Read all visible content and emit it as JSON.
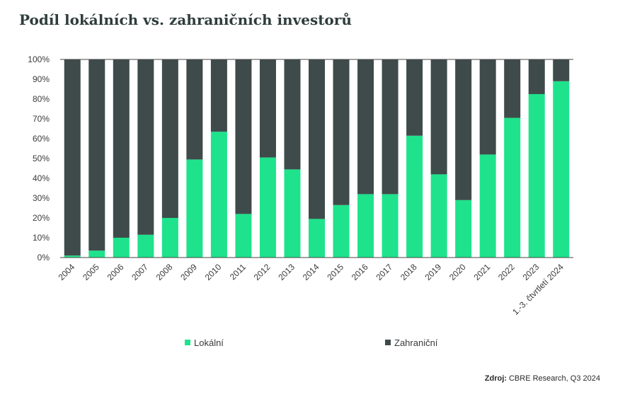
{
  "title": "Podíl lokálních vs. zahraničních investorů",
  "source": {
    "label": "Zdroj:",
    "text": "CBRE Research, Q3 2024"
  },
  "colors": {
    "local": "#1ee38c",
    "foreign": "#3f4b4b",
    "axis": "#444444",
    "text": "#3a3a3a"
  },
  "chart_data": {
    "type": "bar",
    "stacked": true,
    "categories": [
      "2004",
      "2005",
      "2006",
      "2007",
      "2008",
      "2009",
      "2010",
      "2011",
      "2012",
      "2013",
      "2014",
      "2015",
      "2016",
      "2017",
      "2018",
      "2019",
      "2020",
      "2021",
      "2022",
      "2023",
      "1.-3. čtvrtletí 2024"
    ],
    "series": [
      {
        "name": "Lokální",
        "color": "#1ee38c",
        "values": [
          1,
          3.5,
          10,
          11.5,
          20,
          49.5,
          63.5,
          22,
          50.5,
          44.5,
          19.5,
          26.5,
          32,
          32,
          61.5,
          42,
          29,
          52,
          70.5,
          82.5,
          89
        ]
      },
      {
        "name": "Zahraniční",
        "color": "#3f4b4b",
        "values": [
          99,
          96.5,
          90,
          88.5,
          80,
          50.5,
          36.5,
          78,
          49.5,
          55.5,
          80.5,
          73.5,
          68,
          68,
          38.5,
          58,
          71,
          48,
          29.5,
          17.5,
          11
        ]
      }
    ],
    "ylim": [
      0,
      100
    ],
    "yticks": [
      "0%",
      "10%",
      "20%",
      "30%",
      "40%",
      "50%",
      "60%",
      "70%",
      "80%",
      "90%",
      "100%"
    ],
    "grid": false,
    "legend_position": "bottom"
  }
}
